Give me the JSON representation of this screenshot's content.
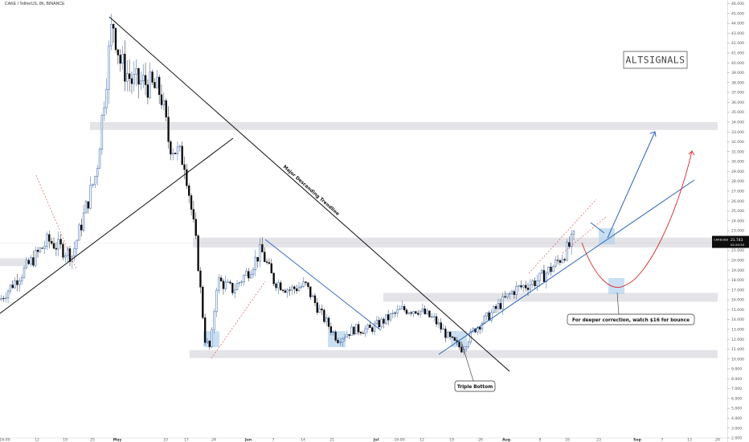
{
  "header": {
    "pair": "CAKE / TetherUS, 8h, BINANCE"
  },
  "logo": "ALTSIGNALS",
  "price_tag": {
    "symbol": "CAKEUSDT",
    "price": "21.743",
    "timer": "02:20:53"
  },
  "annotations": {
    "trendline": "Major Descending Trendline",
    "triple_bottom": "Triple Bottom",
    "correction": "For deeper correction, watch $16 for bounce"
  },
  "colors": {
    "bull": "#1e4f9c",
    "bear": "#0a0a0a",
    "zone": "#e4e4e8",
    "blue_line": "#2a62b8",
    "red_curve": "#d42a2a",
    "highlight": "#b8d4ee"
  },
  "chart_data": {
    "type": "candlestick",
    "title": "CAKE / TetherUS, 8h, BINANCE",
    "ylim": [
      2,
      46
    ],
    "y_ticks": [
      "46.000",
      "45.000",
      "44.000",
      "43.000",
      "42.000",
      "41.000",
      "40.000",
      "39.000",
      "38.000",
      "37.000",
      "36.000",
      "35.000",
      "34.000",
      "33.000",
      "32.000",
      "31.000",
      "30.000",
      "29.000",
      "28.000",
      "27.000",
      "26.000",
      "25.000",
      "24.000",
      "23.000",
      "22.000",
      "21.000",
      "20.000",
      "19.000",
      "18.000",
      "17.000",
      "16.000",
      "15.000",
      "14.000",
      "13.000",
      "12.000",
      "11.000",
      "10.000",
      "9.000",
      "8.000",
      "7.000",
      "6.000",
      "5.000",
      "4.000",
      "3.000",
      "2.000"
    ],
    "x_ticks": [
      "16:00",
      "12",
      "19",
      "25",
      "May",
      "10",
      "17",
      "24",
      "Jun",
      "7",
      "14",
      "21",
      "Jul",
      "16:00",
      "12",
      "19",
      "26",
      "Aug",
      "9",
      "16",
      "23",
      "Sep",
      "7",
      "13",
      "20"
    ],
    "x_ticks_bold": [
      "May",
      "Jun",
      "Jul",
      "Aug",
      "Sep"
    ],
    "path_points": [
      [
        0,
        16.0
      ],
      [
        30,
        19.0
      ],
      [
        60,
        22.0
      ],
      [
        90,
        20.5
      ],
      [
        120,
        29.0
      ],
      [
        140,
        44.5
      ],
      [
        150,
        40.0
      ],
      [
        165,
        38.0
      ],
      [
        180,
        38.0
      ],
      [
        200,
        37.0
      ],
      [
        210,
        32.0
      ],
      [
        230,
        30.0
      ],
      [
        245,
        21.0
      ],
      [
        255,
        12.0
      ],
      [
        262,
        11.0
      ],
      [
        270,
        18.0
      ],
      [
        290,
        17.0
      ],
      [
        310,
        19.0
      ],
      [
        325,
        21.0
      ],
      [
        340,
        18.0
      ],
      [
        360,
        17.0
      ],
      [
        380,
        17.5
      ],
      [
        400,
        14.5
      ],
      [
        420,
        12.0
      ],
      [
        440,
        13.0
      ],
      [
        460,
        13.0
      ],
      [
        480,
        14.0
      ],
      [
        500,
        15.0
      ],
      [
        520,
        15.0
      ],
      [
        540,
        14.0
      ],
      [
        560,
        12.0
      ],
      [
        575,
        11.0
      ],
      [
        590,
        13.0
      ],
      [
        610,
        14.5
      ],
      [
        640,
        17.0
      ],
      [
        670,
        18.0
      ],
      [
        690,
        19.5
      ],
      [
        705,
        21.0
      ],
      [
        716,
        22.5
      ]
    ],
    "zones": [
      [
        33.2,
        34.0
      ],
      [
        21.3,
        22.3
      ],
      [
        15.8,
        16.7
      ],
      [
        10.1,
        10.9
      ],
      [
        19.4,
        20.2
      ]
    ],
    "last_price": 21.743
  }
}
